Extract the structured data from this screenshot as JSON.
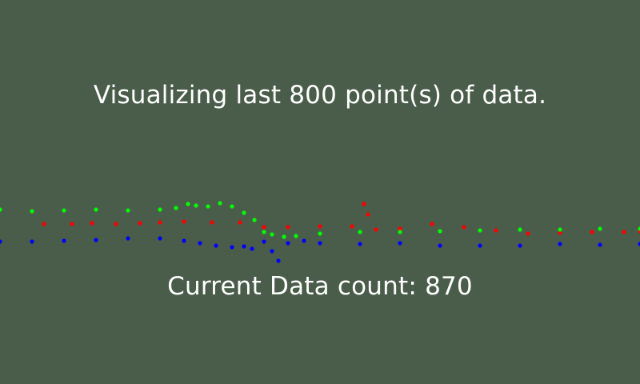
{
  "screen": {
    "background": "#4a5d4a",
    "title_prefix": "Visualizing last ",
    "title_count": "800",
    "title_suffix": " point(s) of data.",
    "count_label": "Current Data count: ",
    "count_value": "870"
  },
  "chart_data": {
    "type": "scatter",
    "title": "",
    "xlabel": "",
    "ylabel": "",
    "grid": false,
    "legend": "none",
    "xlim": [
      0,
      800
    ],
    "ylim": [
      0,
      150
    ],
    "series": [
      {
        "color": "#ff0000",
        "x": [
          55,
          90,
          115,
          145,
          175,
          200,
          230,
          265,
          300,
          330,
          360,
          400,
          440,
          455,
          460,
          470,
          500,
          540,
          580,
          620,
          660,
          700,
          740,
          780,
          800
        ],
        "y": [
          70,
          70,
          71,
          70,
          71,
          72,
          73,
          72,
          72,
          66,
          66,
          67,
          67,
          95,
          82,
          63,
          64,
          70,
          66,
          62,
          58,
          59,
          60,
          60,
          61
        ]
      },
      {
        "color": "#00ff00",
        "x": [
          0,
          40,
          80,
          120,
          160,
          200,
          220,
          235,
          245,
          260,
          275,
          290,
          305,
          318,
          330,
          340,
          355,
          370,
          400,
          450,
          500,
          550,
          600,
          650,
          700,
          750,
          800
        ],
        "y": [
          88,
          86,
          87,
          88,
          87,
          88,
          90,
          95,
          93,
          92,
          96,
          92,
          84,
          75,
          60,
          57,
          54,
          55,
          58,
          60,
          60,
          61,
          62,
          63,
          63,
          64,
          64
        ]
      },
      {
        "color": "#0000ff",
        "x": [
          0,
          40,
          80,
          120,
          160,
          200,
          230,
          250,
          270,
          290,
          305,
          315,
          330,
          340,
          348,
          360,
          380,
          400,
          450,
          500,
          550,
          600,
          650,
          700,
          750,
          800
        ],
        "y": [
          48,
          48,
          49,
          50,
          52,
          52,
          49,
          46,
          43,
          41,
          42,
          39,
          48,
          36,
          24,
          46,
          49,
          46,
          45,
          46,
          43,
          43,
          43,
          45,
          44,
          45
        ]
      }
    ]
  }
}
